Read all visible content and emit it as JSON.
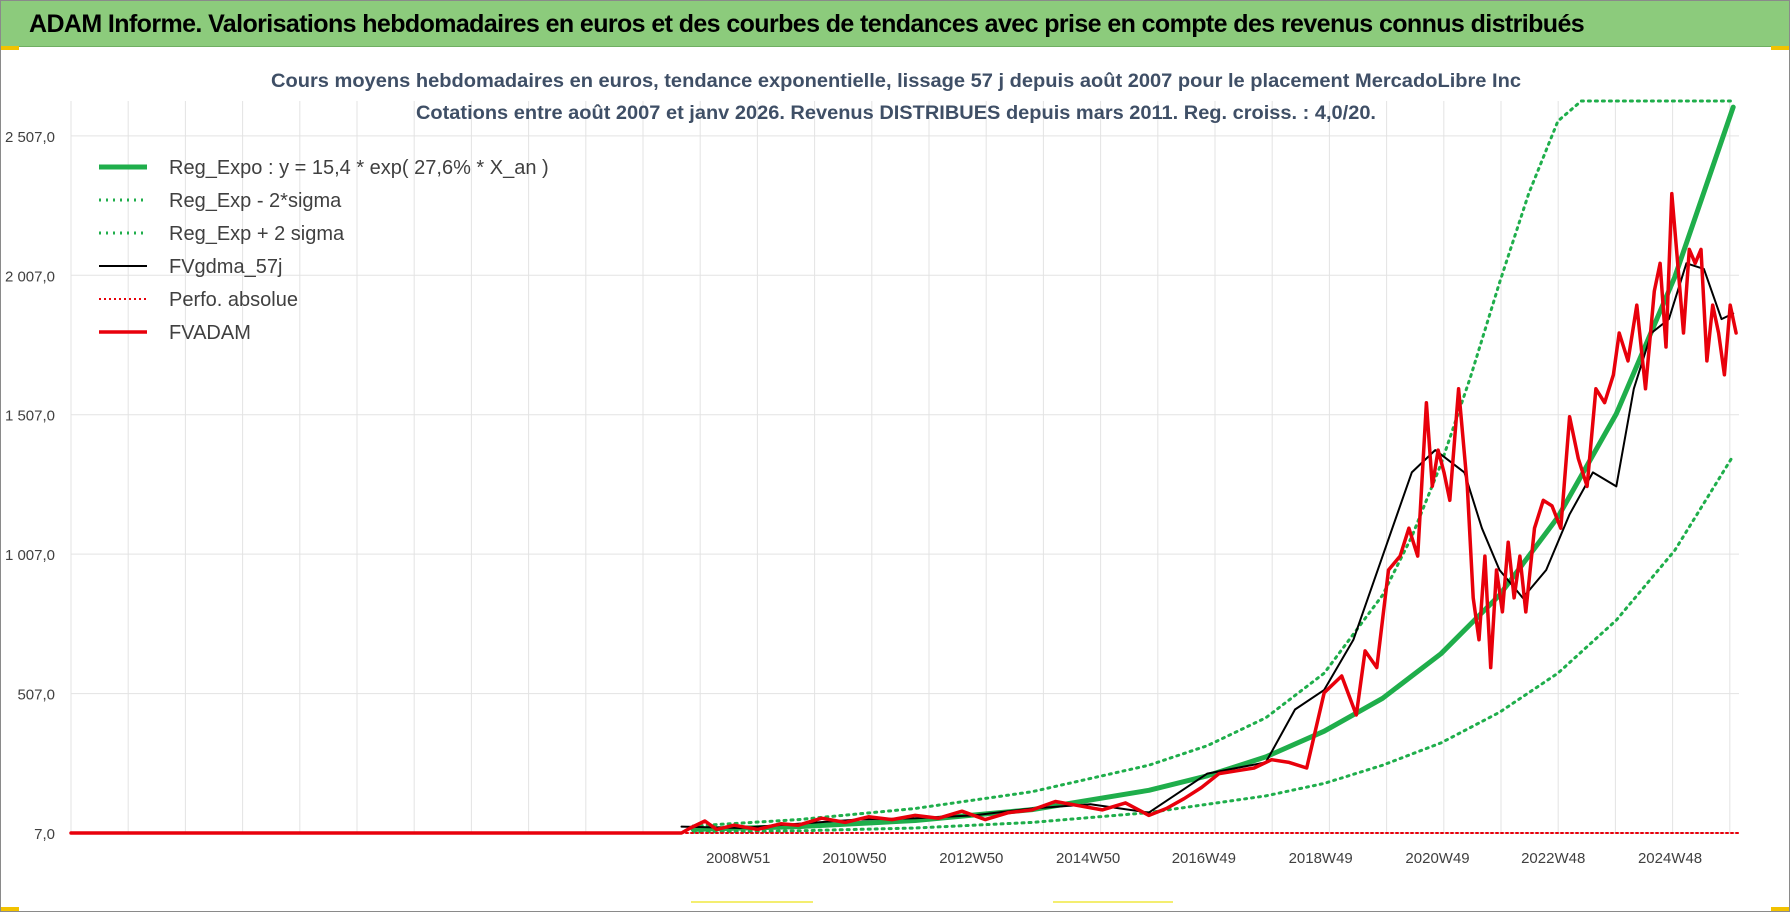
{
  "report": {
    "header_title": "ADAM Informe. Valorisations hebdomadaires en euros et des courbes de tendances avec prise en compte des revenus connus distribués"
  },
  "colors": {
    "header_bg": "#8ccb7c",
    "reg_green": "#1fae4b",
    "fvadam_red": "#e8000b",
    "fvgdma_black": "#000000",
    "grid": "#e3e3e3",
    "axis_text": "#404040",
    "title_text": "#3f4f66"
  },
  "chart_data": {
    "type": "line",
    "title": "Cours moyens hebdomadaires en euros, tendance exponentielle, lissage 57 j depuis août 2007 pour le placement MercadoLibre Inc",
    "subtitle": "Cotations entre août 2007 et janv 2026. Revenus DISTRIBUES depuis mars 2011. Reg. croiss. : 4,0/20.",
    "xlabel": "",
    "ylabel": "",
    "x_range": [
      1997.55,
      2026.1
    ],
    "ylim": [
      7,
      2632
    ],
    "y_ticks": [
      {
        "value": 7,
        "label": "7,0"
      },
      {
        "value": 507,
        "label": "507,0"
      },
      {
        "value": 1007,
        "label": "1 007,0"
      },
      {
        "value": 1507,
        "label": "1 507,0"
      },
      {
        "value": 2007,
        "label": "2 007,0"
      },
      {
        "value": 2507,
        "label": "2 507,0"
      }
    ],
    "x_ticks": [
      {
        "x": 2008.97,
        "label": "2008W51"
      },
      {
        "x": 2010.96,
        "label": "2010W50"
      },
      {
        "x": 2012.96,
        "label": "2012W50"
      },
      {
        "x": 2014.96,
        "label": "2014W50"
      },
      {
        "x": 2016.94,
        "label": "2016W49"
      },
      {
        "x": 2018.94,
        "label": "2018W49"
      },
      {
        "x": 2020.94,
        "label": "2020W49"
      },
      {
        "x": 2022.92,
        "label": "2022W48"
      },
      {
        "x": 2024.92,
        "label": "2024W48"
      }
    ],
    "legend_position": "top-left",
    "legend": [
      {
        "key": "reg_expo",
        "label": "Reg_Expo : y = 15,4 * exp( 27,6% *  X_an )"
      },
      {
        "key": "reg_minus",
        "label": "Reg_Exp - 2*sigma"
      },
      {
        "key": "reg_plus",
        "label": "Reg_Exp + 2 sigma"
      },
      {
        "key": "fvgdma",
        "label": "FVgdma_57j"
      },
      {
        "key": "perfo",
        "label": "Perfo. absolue"
      },
      {
        "key": "fvadam",
        "label": "FVADAM"
      }
    ],
    "series": [
      {
        "name": "Reg_Expo : y = 15,4 * exp( 27,6% *  X_an )",
        "key": "reg_expo",
        "style": "solid-thick",
        "x": [
          2008.2,
          2010,
          2012,
          2014,
          2016,
          2017,
          2018,
          2019,
          2020,
          2021,
          2022,
          2023,
          2024,
          2025,
          2026
        ],
        "values": [
          20,
          30,
          52,
          91,
          160,
          212,
          280,
          372,
          490,
          650,
          860,
          1140,
          1510,
          2000,
          2610
        ]
      },
      {
        "name": "Reg_Exp - 2*sigma",
        "key": "reg_minus",
        "style": "dotted",
        "x": [
          2008.2,
          2010,
          2012,
          2014,
          2016,
          2018,
          2019,
          2020,
          2021,
          2022,
          2023,
          2024,
          2025,
          2026
        ],
        "values": [
          10,
          15,
          25,
          45,
          80,
          140,
          185,
          250,
          330,
          440,
          580,
          770,
          1020,
          1360
        ]
      },
      {
        "name": "Reg_Exp + 2 sigma",
        "key": "reg_plus",
        "style": "dotted",
        "x": [
          2008.2,
          2010,
          2012,
          2014,
          2016,
          2017,
          2018,
          2019,
          2020,
          2020.5,
          2021,
          2021.5,
          2022,
          2022.5,
          2023.0,
          2023.4,
          2026
        ],
        "values": [
          32,
          55,
          95,
          155,
          250,
          320,
          420,
          580,
          860,
          1070,
          1330,
          1640,
          1980,
          2300,
          2560,
          2632,
          2632
        ]
      },
      {
        "name": "FVgdma_57j",
        "key": "fvgdma",
        "style": "solid-thin",
        "x": [
          2008.0,
          2009,
          2010,
          2011,
          2012,
          2013,
          2014,
          2015,
          2016,
          2016.5,
          2017,
          2017.5,
          2018,
          2018.5,
          2019,
          2019.5,
          2020,
          2020.5,
          2020.9,
          2021.4,
          2021.7,
          2022.0,
          2022.4,
          2022.8,
          2023.2,
          2023.6,
          2024.0,
          2024.3,
          2024.6,
          2024.9,
          2025.2,
          2025.5,
          2025.8,
          2026
        ],
        "values": [
          30,
          25,
          40,
          55,
          60,
          70,
          95,
          110,
          80,
          150,
          220,
          240,
          260,
          450,
          520,
          700,
          1000,
          1300,
          1380,
          1300,
          1100,
          950,
          850,
          950,
          1150,
          1300,
          1250,
          1600,
          1800,
          1850,
          2050,
          2030,
          1850,
          1870
        ]
      },
      {
        "name": "Perfo. absolue",
        "key": "perfo",
        "style": "dotted",
        "x": [
          1997.55,
          2026.1
        ],
        "values": [
          7,
          7
        ]
      },
      {
        "name": "FVADAM",
        "key": "fvadam",
        "style": "solid-thick",
        "x": [
          1997.55,
          2008.0,
          2008.15,
          2008.4,
          2008.6,
          2008.9,
          2009.3,
          2009.7,
          2010.0,
          2010.4,
          2010.8,
          2011.2,
          2011.6,
          2012.0,
          2012.4,
          2012.8,
          2013.2,
          2013.6,
          2014.0,
          2014.4,
          2014.8,
          2015.2,
          2015.6,
          2016.0,
          2016.3,
          2016.6,
          2016.9,
          2017.2,
          2017.5,
          2017.8,
          2018.1,
          2018.4,
          2018.7,
          2019.0,
          2019.3,
          2019.55,
          2019.7,
          2019.9,
          2020.1,
          2020.3,
          2020.45,
          2020.6,
          2020.75,
          2020.85,
          2020.95,
          2021.05,
          2021.15,
          2021.3,
          2021.45,
          2021.55,
          2021.65,
          2021.75,
          2021.85,
          2021.95,
          2022.05,
          2022.15,
          2022.25,
          2022.35,
          2022.45,
          2022.6,
          2022.75,
          2022.9,
          2023.05,
          2023.2,
          2023.35,
          2023.5,
          2023.65,
          2023.8,
          2023.95,
          2024.05,
          2024.2,
          2024.35,
          2024.5,
          2024.65,
          2024.75,
          2024.85,
          2024.95,
          2025.05,
          2025.15,
          2025.25,
          2025.35,
          2025.45,
          2025.55,
          2025.65,
          2025.75,
          2025.85,
          2025.95,
          2026.05
        ],
        "values": [
          7,
          7,
          25,
          50,
          20,
          35,
          20,
          40,
          35,
          60,
          45,
          65,
          55,
          70,
          60,
          85,
          55,
          80,
          90,
          120,
          105,
          90,
          115,
          70,
          95,
          130,
          170,
          220,
          230,
          240,
          270,
          260,
          240,
          510,
          570,
          430,
          660,
          600,
          950,
          1000,
          1100,
          1000,
          1550,
          1250,
          1380,
          1300,
          1200,
          1600,
          1250,
          850,
          700,
          1000,
          600,
          950,
          800,
          1050,
          850,
          1000,
          800,
          1100,
          1200,
          1180,
          1100,
          1500,
          1350,
          1250,
          1600,
          1550,
          1650,
          1800,
          1700,
          1900,
          1600,
          1950,
          2050,
          1750,
          2300,
          2050,
          1800,
          2100,
          2050,
          2100,
          1700,
          1900,
          1800,
          1650,
          1900,
          1800
        ]
      }
    ]
  }
}
